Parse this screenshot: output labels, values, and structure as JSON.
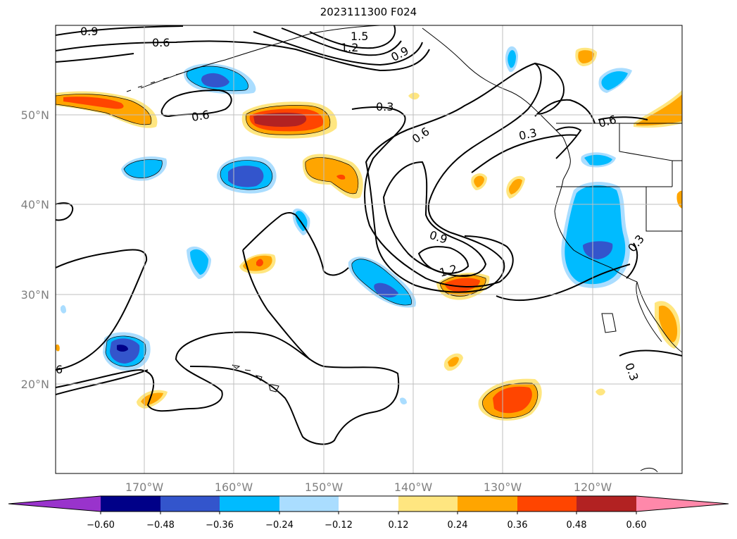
{
  "title": "2023111300 F024",
  "map": {
    "lon_ticks": [
      "170°W",
      "160°W",
      "150°W",
      "140°W",
      "130°W",
      "120°W"
    ],
    "lat_ticks": [
      "50°N",
      "40°N",
      "30°N",
      "20°N"
    ],
    "contour_labels": [
      "0.9",
      "0.6",
      "1.5",
      "1.2",
      "0.9",
      "0.6",
      "0.3",
      "0.6",
      "0.3",
      "0.6",
      "0.9",
      "1.2",
      "0.3",
      "0.3",
      "6"
    ]
  },
  "colorbar": {
    "labels": [
      "−0.60",
      "−0.48",
      "−0.36",
      "−0.24",
      "−0.12",
      "0.12",
      "0.24",
      "0.36",
      "0.48",
      "0.60"
    ],
    "colors": [
      "#9933cc",
      "#000088",
      "#3355cc",
      "#00bbff",
      "#aaddff",
      "#ffffff",
      "#ffe680",
      "#ffa500",
      "#ff4500",
      "#b22222",
      "#ff88aa"
    ]
  }
}
